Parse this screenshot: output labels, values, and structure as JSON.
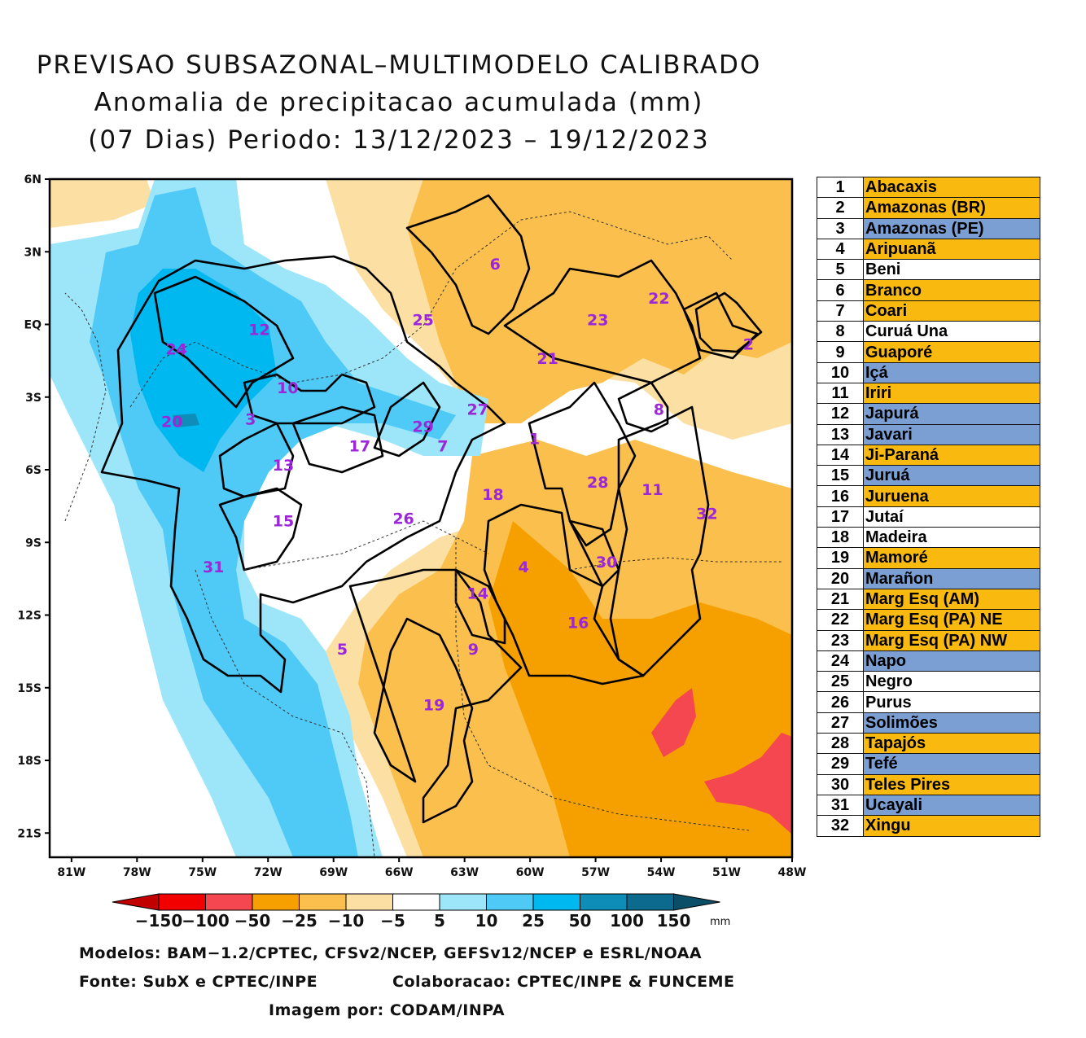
{
  "title": {
    "line1": "PREVISAO SUBSAZONAL–MULTIMODELO CALIBRADO",
    "line2": "Anomalia de precipitacao acumulada (mm)",
    "line3": "(07 Dias) Periodo: 13/12/2023 – 19/12/2023"
  },
  "axes": {
    "y_ticks": [
      "6N",
      "3N",
      "EQ",
      "3S",
      "6S",
      "9S",
      "12S",
      "15S",
      "18S",
      "21S"
    ],
    "x_ticks": [
      "81W",
      "78W",
      "75W",
      "72W",
      "69W",
      "66W",
      "63W",
      "60W",
      "57W",
      "54W",
      "51W",
      "48W"
    ],
    "lat_range": [
      6,
      -22
    ],
    "lon_range": [
      -82,
      -48
    ]
  },
  "basin_labels": [
    {
      "num": "1",
      "lon": -59.8,
      "lat": -4.7
    },
    {
      "num": "2",
      "lon": -50.0,
      "lat": -0.8
    },
    {
      "num": "3",
      "lon": -72.8,
      "lat": -3.9
    },
    {
      "num": "4",
      "lon": -60.3,
      "lat": -10.0
    },
    {
      "num": "5",
      "lon": -68.6,
      "lat": -13.4
    },
    {
      "num": "6",
      "lon": -61.6,
      "lat": 2.5
    },
    {
      "num": "7",
      "lon": -64.0,
      "lat": -5.0
    },
    {
      "num": "8",
      "lon": -54.1,
      "lat": -3.5
    },
    {
      "num": "9",
      "lon": -62.6,
      "lat": -13.4
    },
    {
      "num": "10",
      "lon": -71.1,
      "lat": -2.6
    },
    {
      "num": "11",
      "lon": -54.4,
      "lat": -6.8
    },
    {
      "num": "12",
      "lon": -72.4,
      "lat": -0.2
    },
    {
      "num": "13",
      "lon": -71.3,
      "lat": -5.8
    },
    {
      "num": "14",
      "lon": -62.4,
      "lat": -11.1
    },
    {
      "num": "15",
      "lon": -71.3,
      "lat": -8.1
    },
    {
      "num": "16",
      "lon": -57.8,
      "lat": -12.3
    },
    {
      "num": "17",
      "lon": -67.8,
      "lat": -5.0
    },
    {
      "num": "18",
      "lon": -61.7,
      "lat": -7.0
    },
    {
      "num": "19",
      "lon": -64.4,
      "lat": -15.7
    },
    {
      "num": "20",
      "lon": -76.4,
      "lat": -4.0
    },
    {
      "num": "21",
      "lon": -59.2,
      "lat": -1.4
    },
    {
      "num": "22",
      "lon": -54.1,
      "lat": 1.1
    },
    {
      "num": "23",
      "lon": -56.9,
      "lat": 0.2
    },
    {
      "num": "24",
      "lon": -76.2,
      "lat": -1.0
    },
    {
      "num": "25",
      "lon": -64.9,
      "lat": 0.2
    },
    {
      "num": "26",
      "lon": -65.8,
      "lat": -8.0
    },
    {
      "num": "27",
      "lon": -62.4,
      "lat": -3.5
    },
    {
      "num": "28",
      "lon": -56.9,
      "lat": -6.5
    },
    {
      "num": "29",
      "lon": -64.9,
      "lat": -4.2
    },
    {
      "num": "30",
      "lon": -56.5,
      "lat": -9.8
    },
    {
      "num": "31",
      "lon": -74.5,
      "lat": -10.0
    },
    {
      "num": "32",
      "lon": -51.9,
      "lat": -7.8
    }
  ],
  "legend_colors": {
    "orange": "#f9b90f",
    "blue": "#7b9fd2",
    "white": "#ffffff"
  },
  "legend": [
    {
      "num": "1",
      "name": "Abacaxis",
      "color": "orange"
    },
    {
      "num": "2",
      "name": "Amazonas (BR)",
      "color": "orange"
    },
    {
      "num": "3",
      "name": "Amazonas (PE)",
      "color": "blue"
    },
    {
      "num": "4",
      "name": "Aripuanã",
      "color": "orange"
    },
    {
      "num": "5",
      "name": "Beni",
      "color": "white"
    },
    {
      "num": "6",
      "name": "Branco",
      "color": "orange"
    },
    {
      "num": "7",
      "name": "Coari",
      "color": "orange"
    },
    {
      "num": "8",
      "name": "Curuá Una",
      "color": "white"
    },
    {
      "num": "9",
      "name": "Guaporé",
      "color": "orange"
    },
    {
      "num": "10",
      "name": "Içá",
      "color": "blue"
    },
    {
      "num": "11",
      "name": "Iriri",
      "color": "orange"
    },
    {
      "num": "12",
      "name": "Japurá",
      "color": "blue"
    },
    {
      "num": "13",
      "name": "Javari",
      "color": "blue"
    },
    {
      "num": "14",
      "name": "Ji-Paraná",
      "color": "orange"
    },
    {
      "num": "15",
      "name": "Juruá",
      "color": "blue"
    },
    {
      "num": "16",
      "name": "Juruena",
      "color": "orange"
    },
    {
      "num": "17",
      "name": "Jutaí",
      "color": "white"
    },
    {
      "num": "18",
      "name": "Madeira",
      "color": "white"
    },
    {
      "num": "19",
      "name": "Mamoré",
      "color": "orange"
    },
    {
      "num": "20",
      "name": "Marañon",
      "color": "blue"
    },
    {
      "num": "21",
      "name": "Marg Esq (AM)",
      "color": "orange"
    },
    {
      "num": "22",
      "name": "Marg Esq (PA) NE",
      "color": "orange"
    },
    {
      "num": "23",
      "name": "Marg Esq (PA) NW",
      "color": "orange"
    },
    {
      "num": "24",
      "name": "Napo",
      "color": "blue"
    },
    {
      "num": "25",
      "name": "Negro",
      "color": "white"
    },
    {
      "num": "26",
      "name": "Purus",
      "color": "white"
    },
    {
      "num": "27",
      "name": "Solimões",
      "color": "blue"
    },
    {
      "num": "28",
      "name": "Tapajós",
      "color": "orange"
    },
    {
      "num": "29",
      "name": "Tefé",
      "color": "blue"
    },
    {
      "num": "30",
      "name": "Teles Pires",
      "color": "orange"
    },
    {
      "num": "31",
      "name": "Ucayali",
      "color": "blue"
    },
    {
      "num": "32",
      "name": "Xingu",
      "color": "orange"
    }
  ],
  "colorbar": {
    "colors": [
      "#c30000",
      "#f20000",
      "#f5474f",
      "#f6a000",
      "#fbbf4d",
      "#fce0a3",
      "#ffffff",
      "#9de6fa",
      "#4fc9f5",
      "#00b8f0",
      "#0d8db8",
      "#0b6a8e",
      "#0b4e68"
    ],
    "labels": [
      "−150",
      "−100",
      "−50",
      "−25",
      "−10",
      "−5",
      "5",
      "10",
      "25",
      "50",
      "100",
      "150"
    ],
    "unit": "mm"
  },
  "footer": {
    "models": "Modelos: BAM−1.2/CPTEC, CFSv2/NCEP, GEFSv12/NCEP e ESRL/NOAA",
    "source": "Fonte: SubX e CPTEC/INPE",
    "collab": "Colaboracao: CPTEC/INPE & FUNCEME",
    "image_by": "Imagem por: CODAM/INPA"
  }
}
